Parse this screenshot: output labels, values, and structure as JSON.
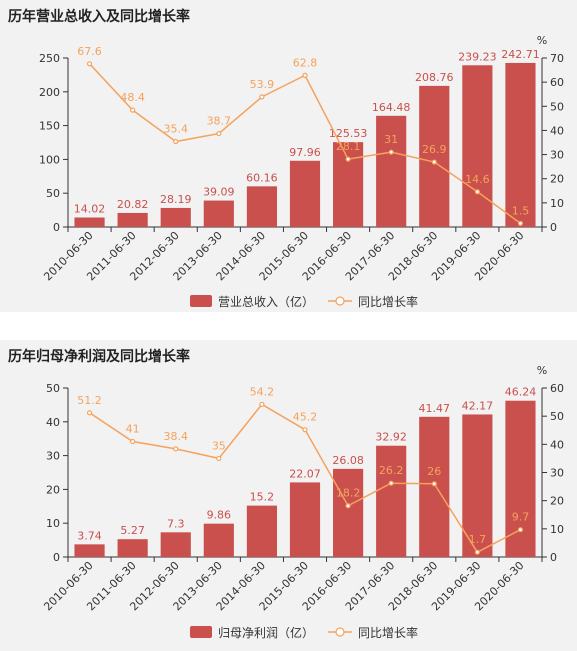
{
  "colors": {
    "bar": "#c9504d",
    "line": "#f5a25d",
    "background": "#f2f2f2"
  },
  "chart_data": [
    {
      "type": "bar",
      "title": "历年营业总收入及同比增长率",
      "categories": [
        "2010-06-30",
        "2011-06-30",
        "2012-06-30",
        "2013-06-30",
        "2014-06-30",
        "2015-06-30",
        "2016-06-30",
        "2017-06-30",
        "2018-06-30",
        "2019-06-30",
        "2020-06-30"
      ],
      "series": [
        {
          "name": "营业总收入（亿）",
          "type": "bar",
          "axis": "left",
          "values": [
            14.02,
            20.82,
            28.19,
            39.09,
            60.16,
            97.96,
            125.53,
            164.48,
            208.76,
            239.23,
            242.71
          ]
        },
        {
          "name": "同比增长率",
          "type": "line",
          "axis": "right",
          "values": [
            67.6,
            48.4,
            35.4,
            38.7,
            53.9,
            62.8,
            28.1,
            31,
            26.9,
            14.6,
            1.5
          ]
        }
      ],
      "ylim": [
        0,
        250
      ],
      "yticks": [
        0,
        50,
        100,
        150,
        200,
        250
      ],
      "y2lim": [
        0,
        70
      ],
      "y2ticks": [
        0,
        10,
        20,
        30,
        40,
        50,
        60,
        70
      ],
      "y2unit": "%",
      "legend": "bottom"
    },
    {
      "type": "bar",
      "title": "历年归母净利润及同比增长率",
      "categories": [
        "2010-06-30",
        "2011-06-30",
        "2012-06-30",
        "2013-06-30",
        "2014-06-30",
        "2015-06-30",
        "2016-06-30",
        "2017-06-30",
        "2018-06-30",
        "2019-06-30",
        "2020-06-30"
      ],
      "series": [
        {
          "name": "归母净利润（亿）",
          "type": "bar",
          "axis": "left",
          "values": [
            3.74,
            5.27,
            7.3,
            9.86,
            15.2,
            22.07,
            26.08,
            32.92,
            41.47,
            42.17,
            46.24
          ]
        },
        {
          "name": "同比增长率",
          "type": "line",
          "axis": "right",
          "values": [
            51.2,
            41,
            38.4,
            35,
            54.2,
            45.2,
            18.2,
            26.2,
            26,
            1.7,
            9.7
          ]
        }
      ],
      "ylim": [
        0,
        50
      ],
      "yticks": [
        0,
        10,
        20,
        30,
        40,
        50
      ],
      "y2lim": [
        0,
        60
      ],
      "y2ticks": [
        0,
        10,
        20,
        30,
        40,
        50,
        60
      ],
      "y2unit": "%",
      "legend": "bottom"
    }
  ]
}
